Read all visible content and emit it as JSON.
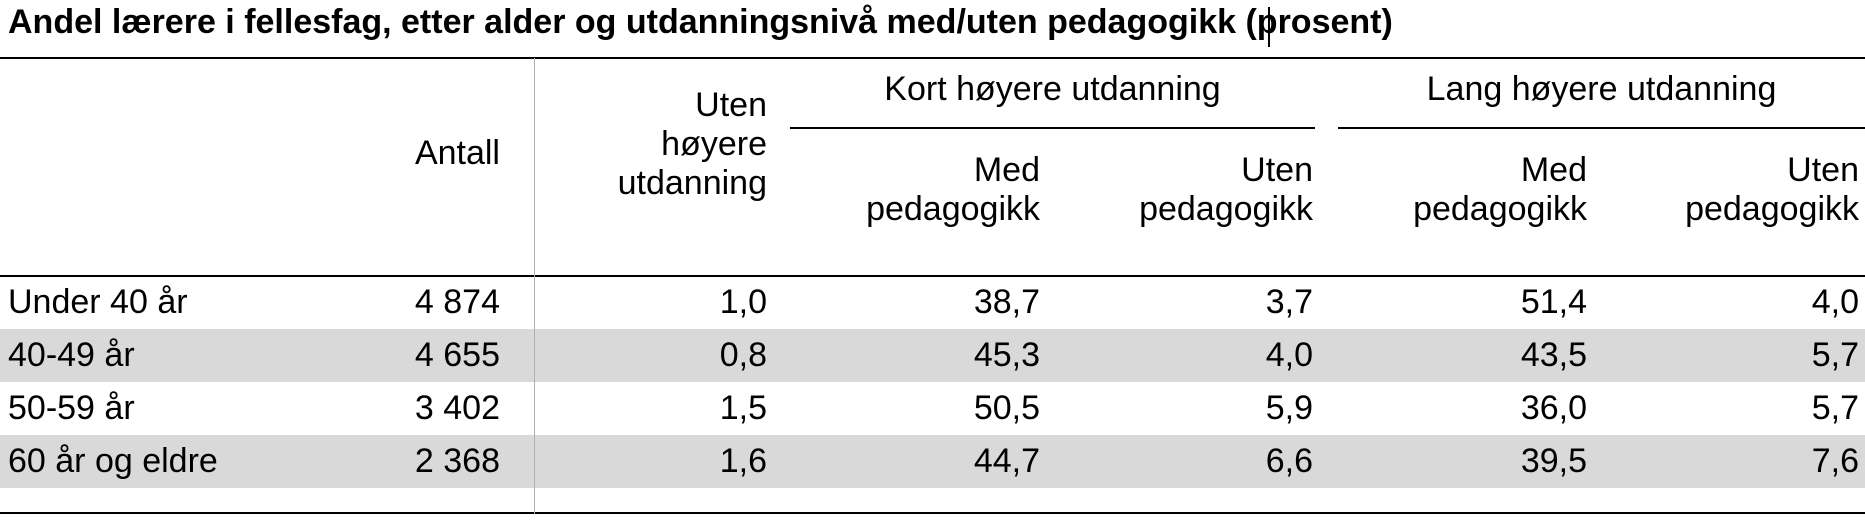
{
  "title": "Andel lærere i fellesfag, etter alder og utdanningsnivå med/uten pedagogikk (prosent)",
  "chart_data": {
    "type": "table",
    "title": "Andel lærere i fellesfag, etter alder og utdanningsnivå med/uten pedagogikk (prosent)",
    "group_headers": [
      "Kort høyere utdanning",
      "Lang høyere utdanning"
    ],
    "column_headers": {
      "antall": "Antall",
      "uten_hoyere": "Uten høyere utdanning",
      "kort_med": "Med pedagogikk",
      "kort_uten": "Uten pedagogikk",
      "lang_med": "Med pedagogikk",
      "lang_uten": "Uten pedagogikk"
    },
    "rows": [
      {
        "label": "Under 40 år",
        "antall": "4 874",
        "uten_hoyere": "1,0",
        "kort_med": "38,7",
        "kort_uten": "3,7",
        "lang_med": "51,4",
        "lang_uten": "4,0"
      },
      {
        "label": "40-49 år",
        "antall": "4 655",
        "uten_hoyere": "0,8",
        "kort_med": "45,3",
        "kort_uten": "4,0",
        "lang_med": "43,5",
        "lang_uten": "5,7"
      },
      {
        "label": "50-59 år",
        "antall": "3 402",
        "uten_hoyere": "1,5",
        "kort_med": "50,5",
        "kort_uten": "5,9",
        "lang_med": "36,0",
        "lang_uten": "5,7"
      },
      {
        "label": "60 år og eldre",
        "antall": "2 368",
        "uten_hoyere": "1,6",
        "kort_med": "44,7",
        "kort_uten": "6,6",
        "lang_med": "39,5",
        "lang_uten": "7,6"
      }
    ],
    "shaded_rows": [
      1,
      3
    ]
  }
}
